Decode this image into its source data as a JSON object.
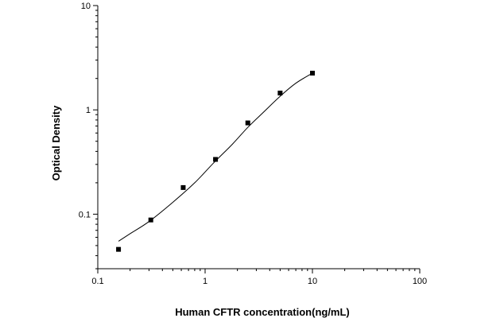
{
  "chart_data": {
    "type": "scatter",
    "title": "",
    "xlabel": "Human CFTR concentration(ng/mL)",
    "ylabel": "Optical Density",
    "x_scale": "log",
    "y_scale": "log",
    "xlim": [
      0.1,
      100
    ],
    "ylim": [
      0.03,
      10
    ],
    "x_ticks": [
      {
        "value": 0.1,
        "label": "0.1"
      },
      {
        "value": 1,
        "label": "1"
      },
      {
        "value": 10,
        "label": "10"
      },
      {
        "value": 100,
        "label": "100"
      }
    ],
    "y_ticks": [
      {
        "value": 0.1,
        "label": "0.1"
      },
      {
        "value": 1,
        "label": "1"
      },
      {
        "value": 10,
        "label": "10"
      }
    ],
    "grid": false,
    "legend": "none",
    "marker": "square",
    "color": "#000000",
    "series": [
      {
        "x": [
          0.156,
          0.312,
          0.625,
          1.25,
          2.5,
          5,
          10
        ],
        "y": [
          0.046,
          0.088,
          0.18,
          0.335,
          0.75,
          1.45,
          2.25
        ]
      }
    ],
    "fit_curve": {
      "x": [
        0.156,
        0.2,
        0.3,
        0.5,
        0.8,
        1.2,
        1.8,
        2.5,
        3.5,
        5,
        7,
        10
      ],
      "y": [
        0.055,
        0.065,
        0.085,
        0.13,
        0.2,
        0.31,
        0.47,
        0.68,
        0.95,
        1.35,
        1.8,
        2.25
      ]
    }
  }
}
